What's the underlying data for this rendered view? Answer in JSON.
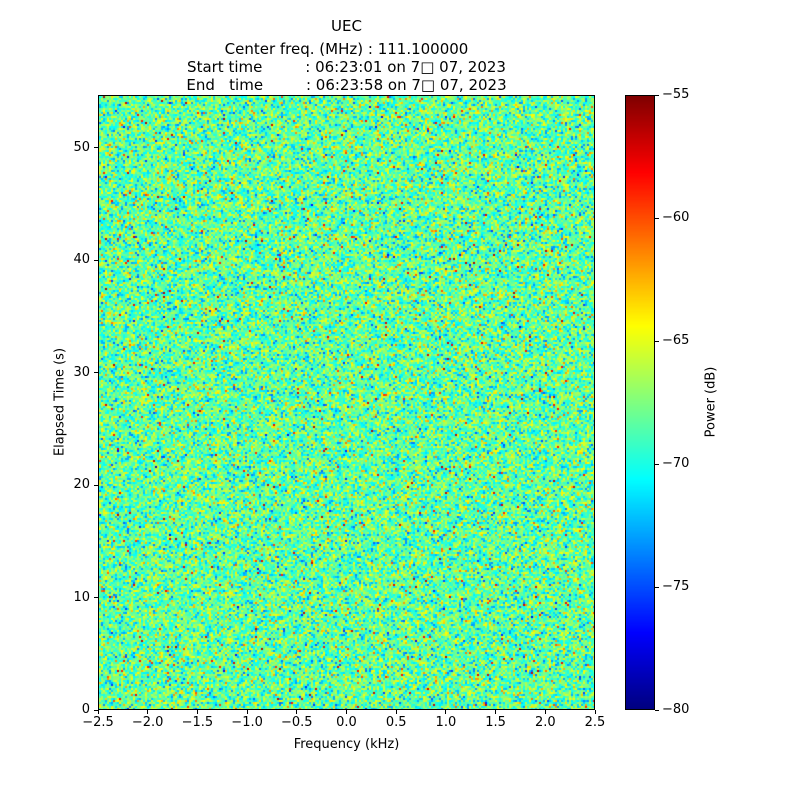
{
  "header": {
    "title": "UEC",
    "center_freq_line": "Center freq. (MHz) : 111.100000",
    "start_time_line": "Start time         : 06:23:01 on 7□ 07, 2023",
    "end_time_line": "End   time         : 06:23:58 on 7□ 07, 2023"
  },
  "chart_data": {
    "type": "heatmap",
    "title": "UEC",
    "subtitle_lines": [
      "Center freq. (MHz) : 111.100000",
      "Start time         : 06:23:01 on 7□ 07, 2023",
      "End   time         : 06:23:58 on 7□ 07, 2023"
    ],
    "xlabel": "Frequency (kHz)",
    "ylabel": "Elapsed Time (s)",
    "x_range": [
      -2.5,
      2.5
    ],
    "y_range": [
      0,
      54.7
    ],
    "xticks": [
      -2.5,
      -2.0,
      -1.5,
      -1.0,
      -0.5,
      0.0,
      0.5,
      1.0,
      1.5,
      2.0,
      2.5
    ],
    "xtick_labels": [
      "−2.5",
      "−2.0",
      "−1.5",
      "−1.0",
      "−0.5",
      "0.0",
      "0.5",
      "1.0",
      "1.5",
      "2.0",
      "2.5"
    ],
    "yticks": [
      0,
      10,
      20,
      30,
      40,
      50
    ],
    "ytick_labels": [
      "0",
      "10",
      "20",
      "30",
      "40",
      "50"
    ],
    "grid": false,
    "legend": "none",
    "colorbar": {
      "label": "Power (dB)",
      "position": "right",
      "vmin": -80,
      "vmax": -55,
      "ticks": [
        -55,
        -60,
        -65,
        -70,
        -75,
        -80
      ],
      "tick_labels": [
        "−55",
        "−60",
        "−65",
        "−70",
        "−75",
        "−80"
      ],
      "colormap": "jet"
    },
    "data_description": "Uniform broadband noise spectrogram with no visible narrowband signal; power values cluster near −68 dB (cyan/green) with sporadic blue dips and yellow/orange/red specks.",
    "noise_model": {
      "mean_db": -68.3,
      "std_db": 2.4,
      "outlier_fraction": 0.012,
      "outlier_range_db": [
        -64,
        -56
      ],
      "seed": 20230707,
      "grid_cols": 249,
      "grid_rows": 308
    }
  }
}
